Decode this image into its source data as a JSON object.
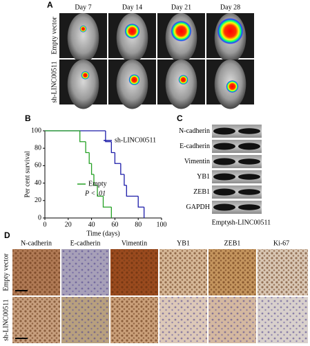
{
  "panel_labels": [
    "A",
    "B",
    "C",
    "D"
  ],
  "panel_a": {
    "columns": [
      "Day 7",
      "Day 14",
      "Day 21",
      "Day 28"
    ],
    "rows": [
      "Empty vector",
      "sh-LINC00511"
    ]
  },
  "chart_data": {
    "type": "step",
    "ylabel": "Per cent survival",
    "xlabel": "Time (days)",
    "annotation": "P < .01",
    "series": [
      {
        "name": "sh-LINC00511",
        "color": "#1a1aa8",
        "x": [
          0,
          52,
          57,
          60,
          65,
          68,
          70,
          80,
          85
        ],
        "values": [
          100,
          87.5,
          75,
          62.5,
          50,
          37.5,
          25,
          12.5,
          0
        ]
      },
      {
        "name": "Empty",
        "color": "#22a022",
        "x": [
          0,
          30,
          35,
          38,
          40,
          42,
          45,
          50,
          57
        ],
        "values": [
          100,
          87.5,
          75,
          62.5,
          50,
          37.5,
          25,
          12.5,
          0
        ]
      }
    ],
    "xlim": [
      0,
      100
    ],
    "ylim": [
      0,
      100
    ],
    "xticks": [
      0,
      20,
      40,
      60,
      80,
      100
    ],
    "yticks": [
      0,
      20,
      40,
      60,
      80,
      100
    ]
  },
  "panel_c": {
    "proteins": [
      "N-cadherin",
      "E-cadherin",
      "Vimentin",
      "YB1",
      "ZEB1",
      "GAPDH"
    ],
    "lanes": [
      "Empty",
      "sh-LINC00511"
    ]
  },
  "panel_d": {
    "columns": [
      "N-cadherin",
      "E-cadherin",
      "Vimentin",
      "YB1",
      "ZEB1",
      "Ki-67"
    ],
    "rows": [
      "Empty vector",
      "sh-LINC00511"
    ]
  }
}
